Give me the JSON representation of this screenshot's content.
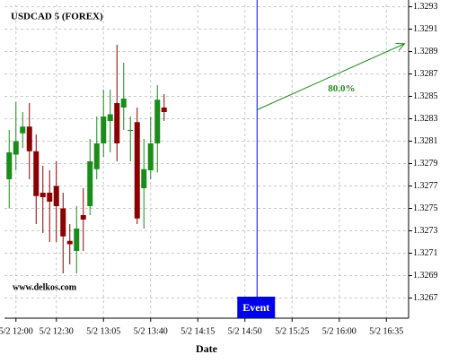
{
  "chart_data": {
    "type": "candlestick",
    "title": "USDCAD 5 (FOREX)",
    "watermark": "www.delkos.com",
    "x_label": "Date",
    "x": [
      0,
      1,
      2,
      3,
      4,
      5,
      6,
      7,
      8,
      9,
      10,
      11,
      12,
      13,
      14,
      15,
      16,
      17,
      18,
      19,
      20,
      21,
      22,
      23
    ],
    "open": [
      1.32776,
      1.32798,
      1.32817,
      1.32823,
      1.32801,
      1.32764,
      1.32764,
      1.3277,
      1.3275,
      1.32721,
      1.32712,
      1.32744,
      1.32752,
      1.32785,
      1.32808,
      1.32828,
      1.32844,
      1.3284,
      1.3282,
      1.32827,
      1.32768,
      1.32784,
      1.32808,
      1.3284
    ],
    "high": [
      1.3282,
      1.32845,
      1.32836,
      1.32844,
      1.32816,
      1.32788,
      1.32784,
      1.32792,
      1.32764,
      1.32736,
      1.32752,
      1.32768,
      1.32812,
      1.32832,
      1.32856,
      1.32856,
      1.32896,
      1.3288,
      1.32832,
      1.3284,
      1.32812,
      1.32832,
      1.3286,
      1.32852
    ],
    "low": [
      1.3275,
      1.32784,
      1.32804,
      1.32776,
      1.32736,
      1.32728,
      1.3272,
      1.3272,
      1.32692,
      1.327,
      1.32692,
      1.32712,
      1.32744,
      1.32776,
      1.32796,
      1.328,
      1.32792,
      1.3282,
      1.32792,
      1.32736,
      1.32732,
      1.32776,
      1.32782,
      1.32828
    ],
    "close": [
      1.328,
      1.3281,
      1.32823,
      1.32801,
      1.32761,
      1.3276,
      1.32756,
      1.32752,
      1.32725,
      1.32718,
      1.32732,
      1.3274,
      1.32792,
      1.32808,
      1.32832,
      1.32834,
      1.32808,
      1.32848,
      1.3282,
      1.32741,
      1.32785,
      1.32808,
      1.32847,
      1.32836
    ],
    "up_color": "#1a8c1a",
    "down_color": "#8b0000",
    "xlim": [
      -0.7,
      59.3
    ],
    "xticks": [
      {
        "value": 1,
        "label": "5/2 12:00"
      },
      {
        "value": 7,
        "label": "5/2 12:30"
      },
      {
        "value": 14,
        "label": "5/2 13:05"
      },
      {
        "value": 21,
        "label": "5/2 13:40"
      },
      {
        "value": 28,
        "label": "5/2 14:15"
      },
      {
        "value": 35,
        "label": "5/2 14:50"
      },
      {
        "value": 42,
        "label": "5/2 15:25"
      },
      {
        "value": 49,
        "label": "5/2 16:00"
      },
      {
        "value": 56,
        "label": "5/2 16:35"
      }
    ],
    "ylim": [
      1.32652,
      1.32932
    ],
    "yticks": [
      1.3267,
      1.3269,
      1.3271,
      1.3273,
      1.3275,
      1.3277,
      1.3279,
      1.3281,
      1.3283,
      1.3285,
      1.3287,
      1.3289,
      1.3291,
      1.3293
    ],
    "grid": true,
    "event": {
      "label": "Event",
      "x": 36.8,
      "color": "#0000ee"
    },
    "forecast": {
      "label": "80.0%",
      "x": [
        36.8,
        58.7
      ],
      "y": [
        1.32838,
        1.32897
      ],
      "color": "#228b22"
    }
  }
}
